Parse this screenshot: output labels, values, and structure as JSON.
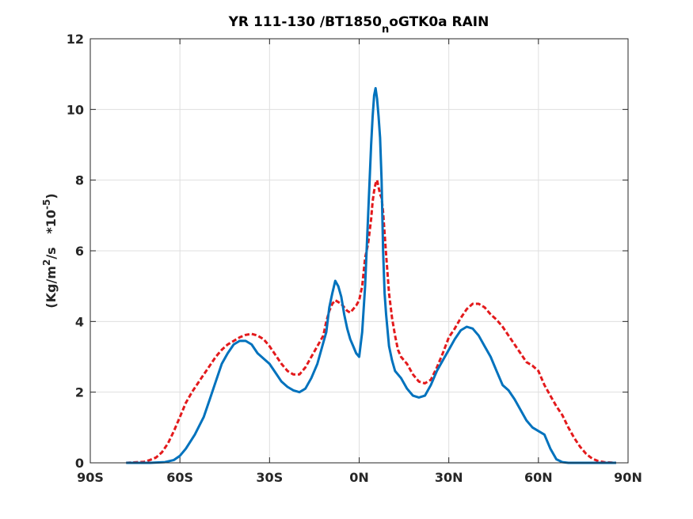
{
  "chart_data": {
    "type": "line",
    "title": "YR 111-130 /BT1850",
    "title_sub": "n",
    "title_tail": "oGTK0a RAIN",
    "ylabel": {
      "prefix": "(Kg/m",
      "sup1": "2",
      "mid": "/s   *10",
      "sup2": "-5",
      "suffix": ")"
    },
    "xlabel": "",
    "xlim": [
      -90,
      90
    ],
    "ylim": [
      0,
      12
    ],
    "x_ticks": [
      -90,
      -60,
      -30,
      0,
      30,
      60,
      90
    ],
    "x_tick_labels": [
      "90S",
      "60S",
      "30S",
      "0N",
      "30N",
      "60N",
      "90N"
    ],
    "y_ticks": [
      0,
      2,
      4,
      6,
      8,
      10,
      12
    ],
    "y_tick_labels": [
      "0",
      "2",
      "4",
      "6",
      "8",
      "10",
      "12"
    ],
    "grid": true,
    "series": [
      {
        "color": "#0072bd",
        "style": "solid",
        "x": [
          -78,
          -70,
          -65,
          -62,
          -60,
          -58,
          -55,
          -52,
          -50,
          -48,
          -46,
          -44,
          -42,
          -40,
          -38,
          -36,
          -34,
          -32,
          -30,
          -28,
          -26,
          -24,
          -22,
          -20,
          -18,
          -16,
          -14,
          -12,
          -11,
          -10,
          -9,
          -8,
          -7,
          -6,
          -5,
          -4,
          -3,
          -2,
          -1,
          0,
          1,
          2,
          3,
          4,
          4.5,
          5,
          5.5,
          6,
          6.5,
          7,
          7.5,
          8,
          8.5,
          9,
          10,
          11,
          12,
          13,
          14,
          16,
          18,
          20,
          22,
          24,
          26,
          28,
          30,
          32,
          34,
          36,
          38,
          40,
          42,
          44,
          46,
          48,
          50,
          52,
          54,
          56,
          58,
          60,
          62,
          64,
          66,
          68,
          70,
          72,
          75,
          78,
          86
        ],
        "y": [
          0,
          0,
          0.02,
          0.08,
          0.2,
          0.4,
          0.8,
          1.3,
          1.8,
          2.3,
          2.8,
          3.1,
          3.35,
          3.45,
          3.45,
          3.35,
          3.1,
          2.95,
          2.8,
          2.55,
          2.3,
          2.15,
          2.05,
          2.0,
          2.1,
          2.4,
          2.8,
          3.4,
          3.7,
          4.4,
          4.8,
          5.15,
          5.0,
          4.7,
          4.2,
          3.8,
          3.5,
          3.3,
          3.1,
          3.0,
          3.7,
          5.0,
          7.0,
          9.0,
          9.8,
          10.4,
          10.6,
          10.3,
          9.8,
          9.2,
          8.0,
          6.0,
          4.8,
          4.2,
          3.3,
          2.9,
          2.6,
          2.5,
          2.4,
          2.1,
          1.9,
          1.85,
          1.9,
          2.2,
          2.6,
          2.9,
          3.2,
          3.5,
          3.75,
          3.85,
          3.8,
          3.6,
          3.3,
          3.0,
          2.6,
          2.2,
          2.05,
          1.8,
          1.5,
          1.2,
          1.0,
          0.9,
          0.8,
          0.4,
          0.1,
          0.02,
          0,
          0,
          0,
          0,
          0
        ]
      },
      {
        "color": "#e31a1c",
        "style": "dashed",
        "x": [
          -78,
          -72,
          -70,
          -68,
          -66,
          -64,
          -62,
          -60,
          -58,
          -56,
          -54,
          -52,
          -50,
          -48,
          -46,
          -44,
          -42,
          -40,
          -38,
          -36,
          -34,
          -32,
          -30,
          -28,
          -26,
          -24,
          -22,
          -20,
          -18,
          -16,
          -14,
          -12,
          -11,
          -10,
          -9,
          -8,
          -7,
          -6,
          -5,
          -4,
          -3,
          -2,
          -1,
          0,
          1,
          2,
          3,
          4,
          4.5,
          5,
          5.5,
          6,
          6.5,
          7,
          7.5,
          8,
          8.5,
          9,
          10,
          11,
          12,
          13,
          14,
          16,
          18,
          20,
          22,
          24,
          26,
          28,
          30,
          32,
          34,
          36,
          38,
          40,
          42,
          44,
          46,
          48,
          50,
          52,
          54,
          56,
          58,
          60,
          62,
          64,
          66,
          68,
          70,
          72,
          74,
          76,
          78,
          80,
          82,
          86
        ],
        "y": [
          0,
          0.03,
          0.08,
          0.15,
          0.3,
          0.55,
          0.9,
          1.3,
          1.7,
          2.0,
          2.25,
          2.5,
          2.75,
          3.0,
          3.2,
          3.35,
          3.45,
          3.55,
          3.62,
          3.65,
          3.6,
          3.5,
          3.3,
          3.05,
          2.8,
          2.6,
          2.5,
          2.5,
          2.7,
          3.0,
          3.3,
          3.6,
          4.0,
          4.3,
          4.5,
          4.6,
          4.55,
          4.5,
          4.4,
          4.3,
          4.25,
          4.35,
          4.45,
          4.6,
          5.0,
          5.8,
          6.2,
          6.9,
          7.4,
          7.7,
          7.9,
          8.0,
          7.8,
          7.6,
          7.5,
          7.1,
          6.5,
          5.9,
          4.8,
          4.1,
          3.6,
          3.2,
          3.0,
          2.8,
          2.5,
          2.3,
          2.25,
          2.35,
          2.7,
          3.1,
          3.55,
          3.8,
          4.1,
          4.35,
          4.5,
          4.5,
          4.4,
          4.2,
          4.05,
          3.85,
          3.6,
          3.35,
          3.1,
          2.85,
          2.75,
          2.6,
          2.2,
          1.9,
          1.6,
          1.35,
          1.0,
          0.7,
          0.45,
          0.25,
          0.12,
          0.05,
          0.02,
          0
        ]
      }
    ]
  }
}
